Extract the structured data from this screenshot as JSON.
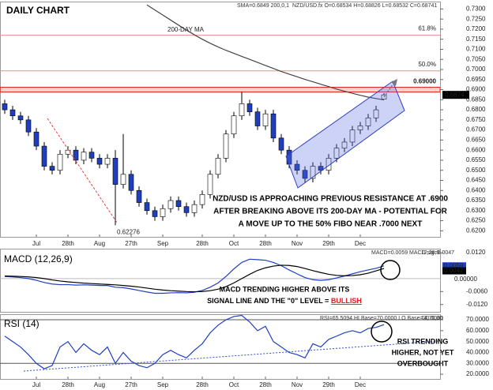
{
  "chart_data": [
    {
      "type": "candlestick",
      "title": "DAILY CHART",
      "header": [
        "SMA=0.6849  200,0,1",
        "NZD/USD.fx O=0.68534 H=0.68826 L=0.68532 C=0.68741"
      ],
      "ma_label": "200-DAY MA",
      "low_label": "0.62276",
      "last_price_label": "0.6874",
      "annotation": [
        "NZD/USD IS APPROACHING PREVIOUS RESISTANCE AT .6900",
        "AFTER BREAKING ABOVE ITS 200-DAY MA - POTENTIAL FOR",
        "A MOVE UP TO THE 50% FIBO NEAR .7000 NEXT"
      ],
      "up_color": "#ffffff",
      "down_color": "#1f3fbf",
      "ma_color": "#444444",
      "open": [
        0.683,
        0.68,
        0.677,
        0.675,
        0.669,
        0.662,
        0.652,
        0.65,
        0.658,
        0.66,
        0.655,
        0.659,
        0.656,
        0.653,
        0.656,
        0.643,
        0.648,
        0.64,
        0.634,
        0.63,
        0.627,
        0.631,
        0.635,
        0.632,
        0.629,
        0.633,
        0.638,
        0.648,
        0.656,
        0.668,
        0.677,
        0.683,
        0.679,
        0.672,
        0.678,
        0.666,
        0.66,
        0.653,
        0.65,
        0.646,
        0.652,
        0.65,
        0.656,
        0.661,
        0.664,
        0.67,
        0.672,
        0.676,
        0.68534
      ],
      "high": [
        0.685,
        0.682,
        0.679,
        0.677,
        0.671,
        0.664,
        0.654,
        0.66,
        0.662,
        0.662,
        0.661,
        0.661,
        0.658,
        0.658,
        0.66,
        0.668,
        0.65,
        0.642,
        0.636,
        0.632,
        0.633,
        0.637,
        0.637,
        0.634,
        0.635,
        0.64,
        0.65,
        0.658,
        0.67,
        0.679,
        0.689,
        0.685,
        0.681,
        0.68,
        0.68,
        0.668,
        0.662,
        0.655,
        0.652,
        0.654,
        0.654,
        0.658,
        0.663,
        0.666,
        0.672,
        0.674,
        0.678,
        0.682,
        0.68826
      ],
      "low": [
        0.678,
        0.675,
        0.673,
        0.667,
        0.66,
        0.65,
        0.648,
        0.648,
        0.656,
        0.653,
        0.653,
        0.654,
        0.651,
        0.651,
        0.62276,
        0.641,
        0.638,
        0.632,
        0.628,
        0.625,
        0.625,
        0.629,
        0.63,
        0.627,
        0.627,
        0.631,
        0.636,
        0.646,
        0.654,
        0.666,
        0.675,
        0.677,
        0.67,
        0.67,
        0.664,
        0.658,
        0.651,
        0.648,
        0.644,
        0.644,
        0.648,
        0.648,
        0.654,
        0.659,
        0.662,
        0.668,
        0.67,
        0.674,
        0.68532
      ],
      "close": [
        0.68,
        0.677,
        0.675,
        0.669,
        0.662,
        0.652,
        0.65,
        0.658,
        0.66,
        0.655,
        0.659,
        0.656,
        0.653,
        0.656,
        0.643,
        0.648,
        0.64,
        0.634,
        0.63,
        0.627,
        0.631,
        0.635,
        0.632,
        0.629,
        0.633,
        0.638,
        0.648,
        0.656,
        0.668,
        0.677,
        0.683,
        0.679,
        0.672,
        0.678,
        0.666,
        0.66,
        0.653,
        0.65,
        0.646,
        0.652,
        0.65,
        0.656,
        0.661,
        0.664,
        0.67,
        0.672,
        0.676,
        0.68,
        0.68741
      ],
      "ma": [
        null,
        null,
        null,
        null,
        null,
        null,
        null,
        null,
        null,
        null,
        null,
        null,
        null,
        null,
        null,
        null,
        null,
        null,
        0.732,
        0.7295,
        0.727,
        0.7245,
        0.722,
        0.7195,
        0.7172,
        0.715,
        0.713,
        0.7112,
        0.7095,
        0.708,
        0.7065,
        0.705,
        0.7035,
        0.702,
        0.7005,
        0.699,
        0.6977,
        0.6964,
        0.6951,
        0.6939,
        0.6927,
        0.6915,
        0.6903,
        0.6892,
        0.6882,
        0.6872,
        0.6863,
        0.6856,
        0.6849
      ],
      "levels": [
        {
          "value": 0.717,
          "label": "61.8%",
          "color": "#f08a8a"
        },
        {
          "value": 0.6993,
          "label": "50.0%",
          "color": "#f08a8a"
        },
        {
          "value": 0.69,
          "label": "0.69000",
          "color": "#e02020"
        }
      ],
      "ylim": [
        0.617,
        0.7325
      ],
      "yticks": [
        {
          "value": 0.62,
          "label": "0.6200"
        },
        {
          "value": 0.625,
          "label": "0.6250"
        },
        {
          "value": 0.63,
          "label": "0.6300"
        },
        {
          "value": 0.635,
          "label": "0.6350"
        },
        {
          "value": 0.64,
          "label": "0.6400"
        },
        {
          "value": 0.645,
          "label": "0.6450"
        },
        {
          "value": 0.65,
          "label": "0.6500"
        },
        {
          "value": 0.655,
          "label": "0.6550"
        },
        {
          "value": 0.66,
          "label": "0.6600"
        },
        {
          "value": 0.665,
          "label": "0.6650"
        },
        {
          "value": 0.67,
          "label": "0.6700"
        },
        {
          "value": 0.675,
          "label": "0.6750"
        },
        {
          "value": 0.68,
          "label": "0.6800"
        },
        {
          "value": 0.685,
          "label": "0.6850"
        },
        {
          "value": 0.69,
          "label": "0.6900"
        },
        {
          "value": 0.695,
          "label": "0.6950"
        },
        {
          "value": 0.7,
          "label": "0.7000"
        },
        {
          "value": 0.705,
          "label": "0.7050"
        },
        {
          "value": 0.71,
          "label": "0.7100"
        },
        {
          "value": 0.715,
          "label": "0.7150"
        },
        {
          "value": 0.72,
          "label": "0.7200"
        },
        {
          "value": 0.725,
          "label": "0.7250"
        },
        {
          "value": 0.73,
          "label": "0.7300"
        }
      ],
      "xticks": [
        {
          "value": 4,
          "label": "Jul"
        },
        {
          "value": 8,
          "label": "28th"
        },
        {
          "value": 12,
          "label": "Aug"
        },
        {
          "value": 16,
          "label": "27th"
        },
        {
          "value": 20,
          "label": "Sep"
        },
        {
          "value": 25,
          "label": "28th"
        },
        {
          "value": 29,
          "label": "Oct"
        },
        {
          "value": 33,
          "label": "28th"
        },
        {
          "value": 37,
          "label": "Nov"
        },
        {
          "value": 41,
          "label": "29th"
        },
        {
          "value": 45,
          "label": "Dec"
        }
      ]
    },
    {
      "type": "line",
      "title": "MACD (12,26,9)",
      "header": [
        "MACD=0.0059 MACD sig=0.0047",
        "12,26,9"
      ],
      "zero_label": "0.00000",
      "annotation": [
        "MACD TRENDING HIGHER ABOVE ITS",
        "SIGNAL LINE AND THE \"0\" LEVEL = "
      ],
      "emphasis": "BULLISH",
      "series": [
        {
          "color": "#1f3fbf",
          "last_label": "0.0059",
          "values": [
            0.001,
            0.0008,
            0.0005,
            0.0,
            -0.0008,
            -0.0018,
            -0.0025,
            -0.0028,
            -0.0028,
            -0.003,
            -0.0029,
            -0.003,
            -0.0032,
            -0.0032,
            -0.004,
            -0.0042,
            -0.0048,
            -0.0055,
            -0.0062,
            -0.0068,
            -0.0068,
            -0.0066,
            -0.0065,
            -0.0066,
            -0.0063,
            -0.0055,
            -0.004,
            -0.002,
            0.001,
            0.0045,
            0.0075,
            0.009,
            0.0088,
            0.0085,
            0.0075,
            0.006,
            0.004,
            0.0022,
            0.0005,
            -0.0005,
            -0.0008,
            -0.0005,
            0.0003,
            0.0012,
            0.0022,
            0.0032,
            0.004,
            0.0048,
            0.0059
          ]
        },
        {
          "color": "#000000",
          "last_label": "0.0047",
          "values": [
            0.0012,
            0.0011,
            0.001,
            0.0008,
            0.0005,
            0.0,
            -0.0006,
            -0.0011,
            -0.0015,
            -0.0018,
            -0.0021,
            -0.0023,
            -0.0025,
            -0.0027,
            -0.0029,
            -0.0032,
            -0.0035,
            -0.0039,
            -0.0044,
            -0.0049,
            -0.0053,
            -0.0056,
            -0.0058,
            -0.006,
            -0.0061,
            -0.006,
            -0.0056,
            -0.0049,
            -0.0037,
            -0.002,
            0.0,
            0.002,
            0.0038,
            0.005,
            0.0058,
            0.0062,
            0.0061,
            0.0056,
            0.0047,
            0.0037,
            0.0028,
            0.002,
            0.0015,
            0.0013,
            0.0014,
            0.0018,
            0.0025,
            0.0036,
            0.0047
          ]
        }
      ],
      "ylim": [
        -0.0154,
        0.0135
      ],
      "yticks": [
        {
          "value": 0.012,
          "label": "0.0120"
        },
        {
          "value": -0.006,
          "label": "-0.0060"
        },
        {
          "value": -0.012,
          "label": "-0.0120"
        }
      ]
    },
    {
      "type": "line",
      "title": "RSI (14)",
      "header": [
        "RSI=65.5094 HI Base=70.0000 LO Base=30.0000",
        "14,70,30"
      ],
      "annotation": [
        "RSI TRENDING",
        "HIGHER, NOT YET",
        "OVERBOUGHT"
      ],
      "levels": [
        70,
        30
      ],
      "series": [
        {
          "color": "#1f3fbf",
          "values": [
            55,
            50,
            45,
            38,
            30,
            25,
            28,
            45,
            50,
            40,
            48,
            42,
            38,
            45,
            30,
            40,
            32,
            28,
            26,
            30,
            38,
            42,
            38,
            35,
            42,
            48,
            58,
            65,
            70,
            73,
            74,
            68,
            60,
            64,
            50,
            45,
            40,
            38,
            35,
            48,
            45,
            52,
            55,
            58,
            60,
            58,
            62,
            63,
            65.5094
          ]
        }
      ],
      "ylim": [
        15.7,
        75.1
      ],
      "yticks": [
        {
          "value": 70,
          "label": "70.0000"
        },
        {
          "value": 60,
          "label": "60.0000"
        },
        {
          "value": 50,
          "label": "50.0000"
        },
        {
          "value": 40,
          "label": "40.0000"
        },
        {
          "value": 30,
          "label": "30.0000"
        },
        {
          "value": 20,
          "label": "20.0000"
        }
      ]
    }
  ]
}
